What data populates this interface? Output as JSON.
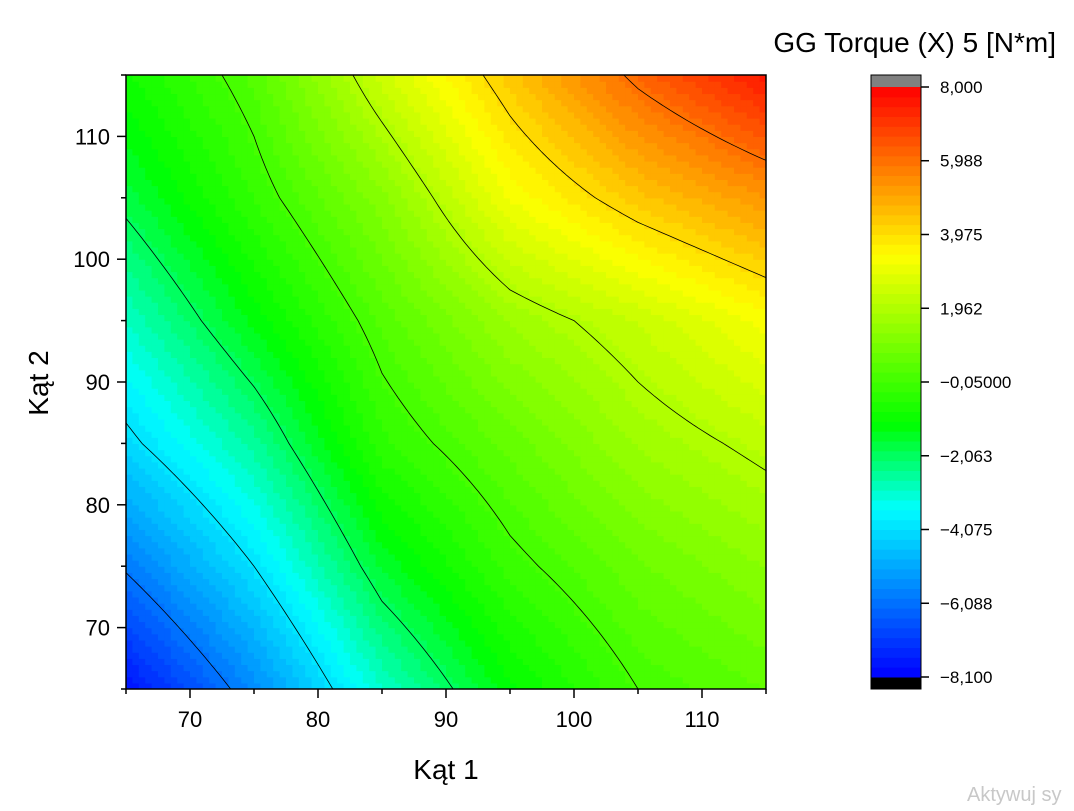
{
  "chart_data": {
    "type": "heatmap",
    "subtype": "filled-contour",
    "xlabel": "Kąt 1",
    "ylabel": "Kąt 2",
    "colorbar_title": "GG Torque (X) 5 [N*m]",
    "xlim": [
      65,
      115
    ],
    "ylim": [
      65,
      115
    ],
    "x_ticks": [
      70,
      80,
      90,
      100,
      110
    ],
    "y_ticks": [
      70,
      80,
      90,
      100,
      110
    ],
    "colorbar": {
      "min": -8.1,
      "max": 8.0,
      "tick_values": [
        8.0,
        5.988,
        3.975,
        1.962,
        -0.05,
        -2.063,
        -4.075,
        -6.088,
        -8.1
      ],
      "tick_labels": [
        "8,000",
        "5,988",
        "3,975",
        "1,962",
        "−0,05000",
        "−2,063",
        "−4,075",
        "−6,088",
        "−8,100"
      ],
      "above_color": "#808080",
      "below_color": "#000000",
      "colormap": [
        "#0000ff",
        "#0080ff",
        "#00ffff",
        "#00ff00",
        "#80ff00",
        "#ffff00",
        "#ff8000",
        "#ff0000"
      ]
    },
    "grid_x": [
      65,
      75,
      85,
      95,
      105,
      115
    ],
    "grid_y": [
      65,
      75,
      85,
      95,
      105,
      115
    ],
    "z": [
      [
        -7.8,
        -5.6,
        -3.0,
        -1.2,
        0.0,
        0.5
      ],
      [
        -5.9,
        -4.0,
        -1.6,
        -0.2,
        0.7,
        1.3
      ],
      [
        -4.2,
        -2.6,
        -0.4,
        0.6,
        1.6,
        2.2
      ],
      [
        -3.0,
        -1.3,
        0.3,
        1.6,
        2.4,
        3.3
      ],
      [
        -1.8,
        -0.3,
        1.2,
        3.2,
        4.4,
        5.3
      ],
      [
        -0.9,
        0.3,
        2.5,
        4.4,
        6.2,
        7.6
      ]
    ],
    "contour_levels": [
      -6,
      -4,
      -2,
      0,
      2,
      4,
      6
    ]
  },
  "watermark": "Aktywuj sy"
}
